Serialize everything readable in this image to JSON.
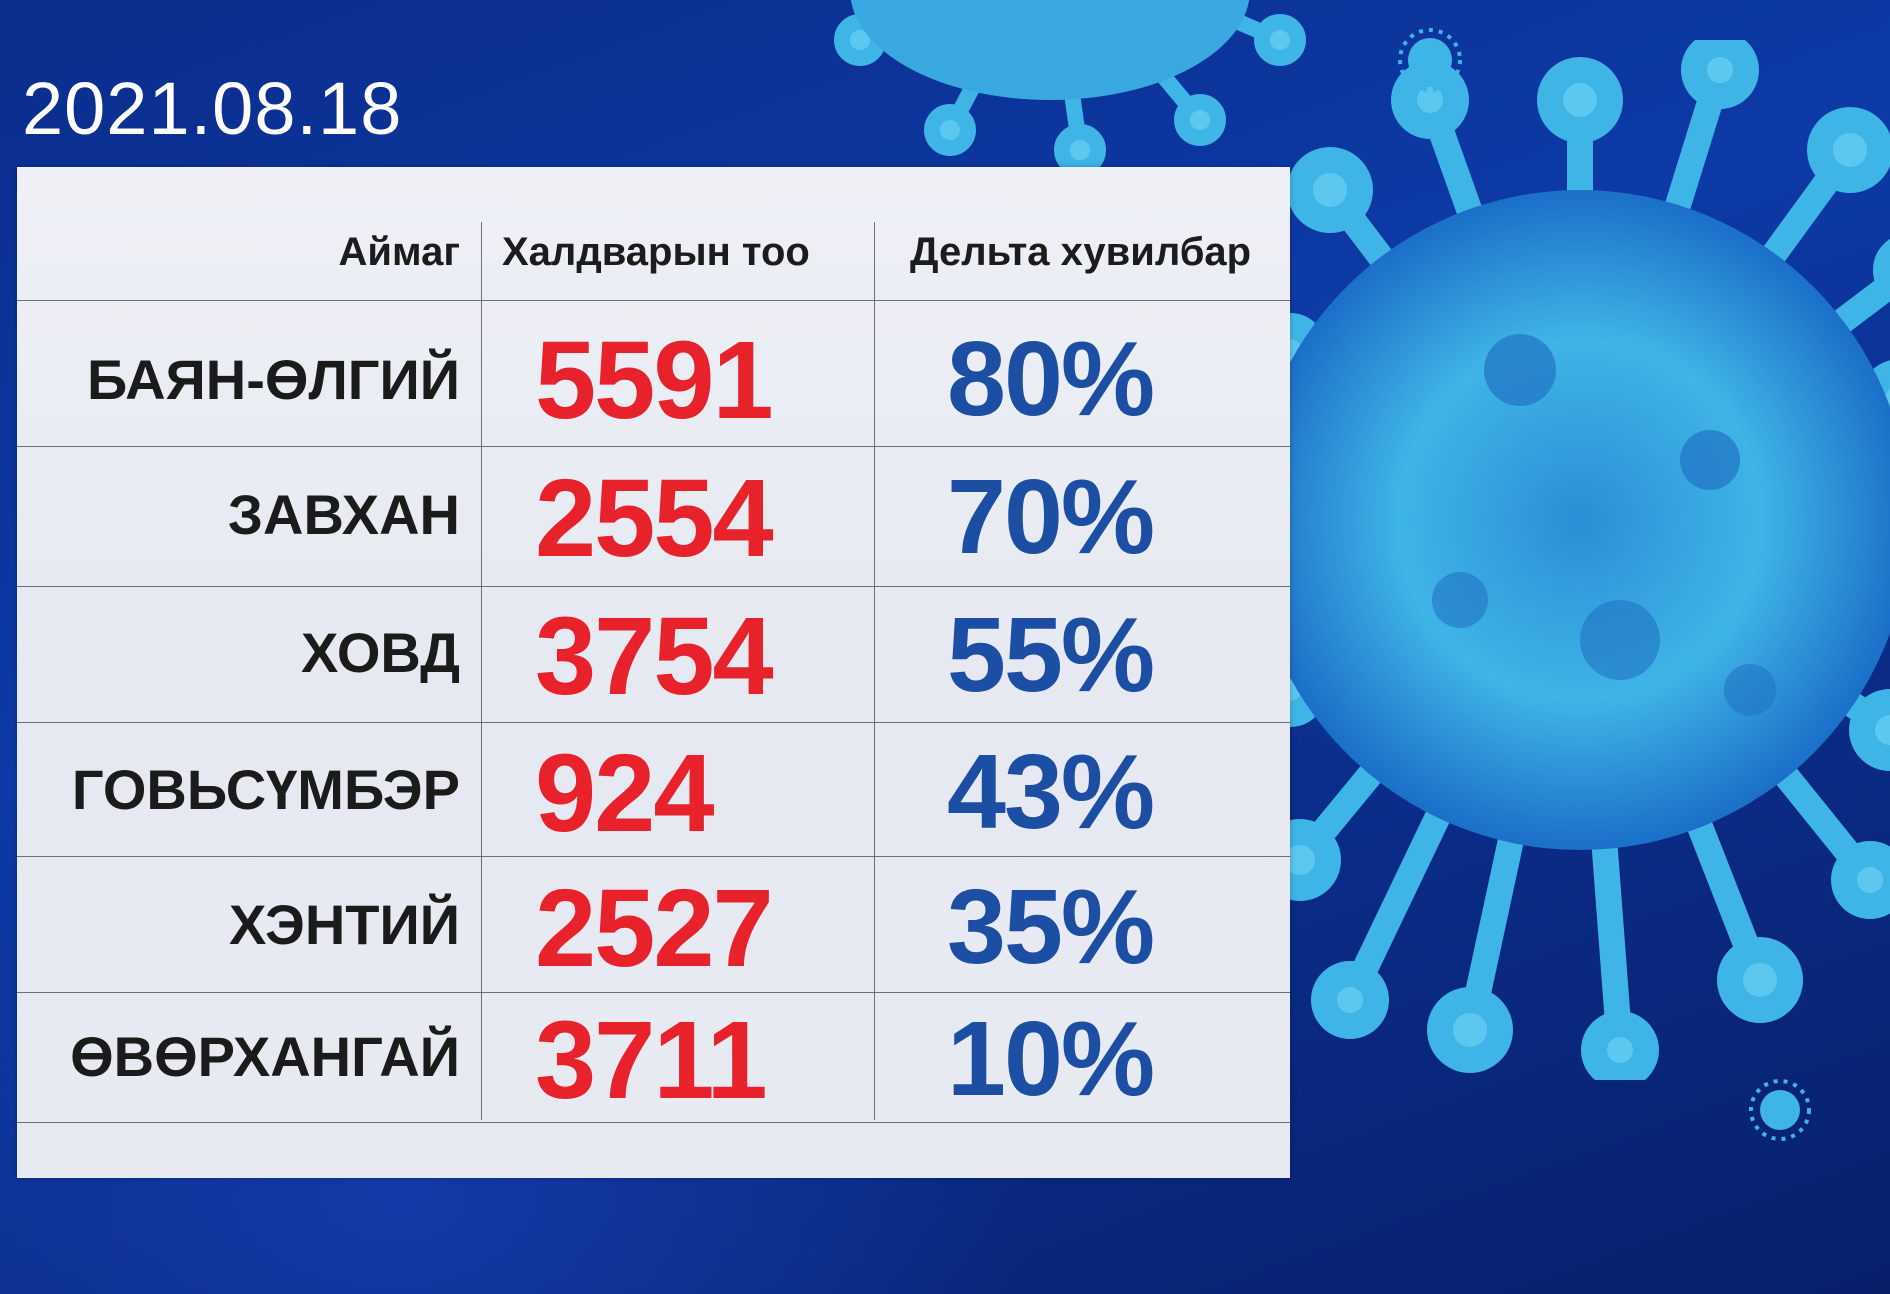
{
  "date": "2021.08.18",
  "chart_data": {
    "type": "table",
    "columns": [
      "Аймаг",
      "Халдварын тоо",
      "Дельта хувилбар"
    ],
    "rows": [
      {
        "aimag": "БАЯН-ӨЛГИЙ",
        "cases": "5591",
        "delta": "80%"
      },
      {
        "aimag": "ЗАВХАН",
        "cases": "2554",
        "delta": "70%"
      },
      {
        "aimag": "ХОВД",
        "cases": "3754",
        "delta": "55%"
      },
      {
        "aimag": "ГОВЬСҮМБЭР",
        "cases": "924",
        "delta": "43%"
      },
      {
        "aimag": "ХЭНТИЙ",
        "cases": "2527",
        "delta": "35%"
      },
      {
        "aimag": "ӨВӨРХАНГАЙ",
        "cases": "3711",
        "delta": "10%"
      }
    ]
  },
  "colors": {
    "cases": "#e8222a",
    "delta": "#1c4ea3",
    "background": "#0b2d8c",
    "virus": "#3fb4e6"
  },
  "icons": [
    "coronavirus-illustration"
  ]
}
